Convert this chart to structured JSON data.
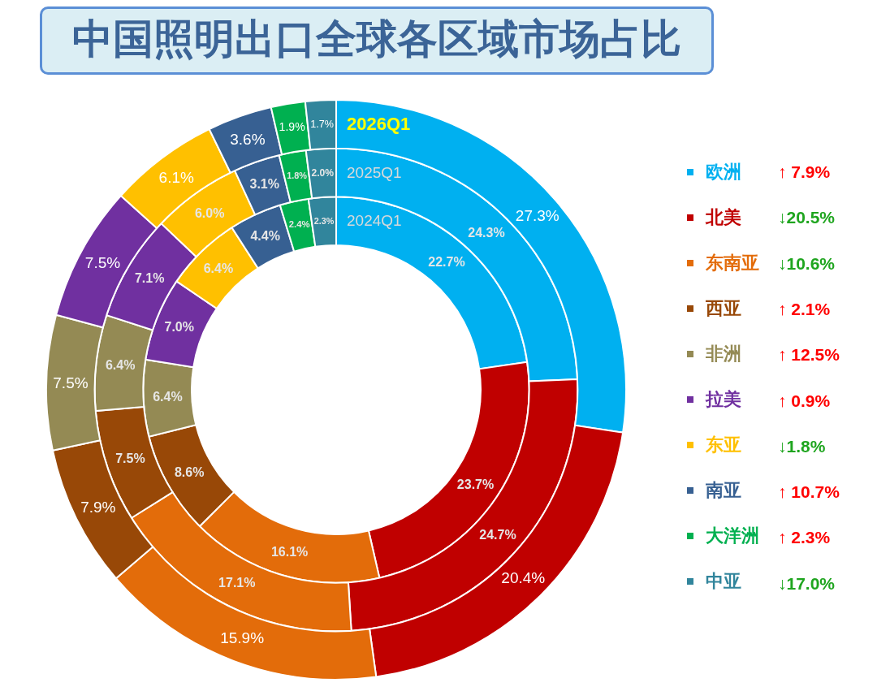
{
  "chart_data": {
    "type": "donut",
    "title": "中国照明出口全球各区域市场占比",
    "categories": [
      "欧洲",
      "北美",
      "东南亚",
      "西亚",
      "非洲",
      "拉美",
      "东亚",
      "南亚",
      "大洋洲",
      "中亚"
    ],
    "colors": [
      "#00b0f0",
      "#c00000",
      "#e36c0a",
      "#984807",
      "#948a54",
      "#7030a0",
      "#ffc000",
      "#376092",
      "#00b050",
      "#31859c"
    ],
    "series": [
      {
        "name": "2024Q1",
        "values": [
          22.7,
          23.7,
          16.1,
          8.6,
          6.4,
          7.0,
          6.4,
          4.4,
          2.4,
          2.3
        ],
        "value_labels": [
          "22.7%",
          "23.7%",
          "16.1%",
          "8.6%",
          "6.4%",
          "7.0%",
          "6.4%",
          "4.4%",
          "2.4%",
          "2.3%"
        ]
      },
      {
        "name": "2025Q1",
        "values": [
          24.3,
          24.7,
          17.1,
          7.5,
          6.4,
          7.1,
          6.0,
          3.1,
          1.8,
          2.0
        ],
        "value_labels": [
          "24.3%",
          "24.7%",
          "17.1%",
          "7.5%",
          "6.4%",
          "7.1%",
          "6.0%",
          "3.1%",
          "1.8%",
          "2.0%"
        ]
      },
      {
        "name": "2026Q1",
        "values": [
          27.3,
          20.4,
          15.9,
          7.9,
          7.5,
          7.5,
          6.1,
          3.6,
          1.9,
          1.7
        ],
        "value_labels": [
          "27.3%",
          "20.4%",
          "15.9%",
          "7.9%",
          "7.5%",
          "7.5%",
          "6.1%",
          "3.6%",
          "1.9%",
          "1.7%"
        ]
      }
    ],
    "legend": "right",
    "annotations": [
      "↑ 7.9%",
      "↓20.5%",
      "↓10.6%",
      "↑ 2.1%",
      "↑ 12.5%",
      "↑ 0.9%",
      "↓1.8%",
      "↑ 10.7%",
      "↑ 2.3%",
      "↓17.0%"
    ]
  }
}
